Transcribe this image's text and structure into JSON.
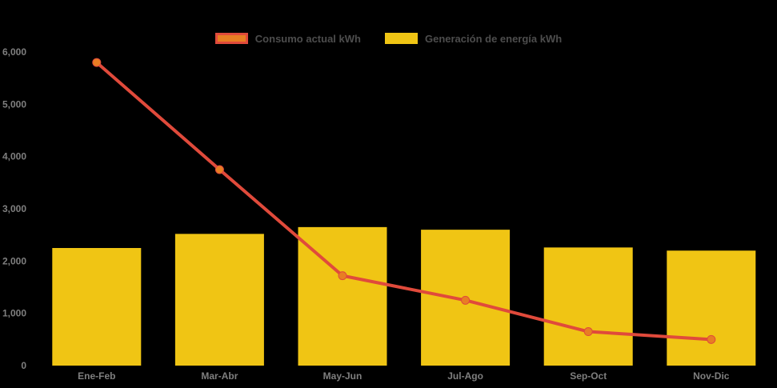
{
  "colors": {
    "background": "#000000",
    "axis_text": "#7F7F7F",
    "legend_text": "#4D4D4D"
  },
  "chart_data": {
    "type": "bar",
    "subtype": "combo-bar-line",
    "title": "",
    "xlabel": "",
    "ylabel": "",
    "grid": false,
    "legend_position": "top",
    "categories": [
      "Ene-Feb",
      "Mar-Abr",
      "May-Jun",
      "Jul-Ago",
      "Sep-Oct",
      "Nov-Dic"
    ],
    "series": [
      {
        "name": "Consumo actual kWh",
        "type": "line",
        "color": "#E04A3B",
        "marker_color": "#E87E23",
        "values": [
          5800,
          3750,
          1720,
          1250,
          650,
          500
        ]
      },
      {
        "name": "Generación de energía kWh",
        "type": "bar",
        "color": "#F0C514",
        "values": [
          2250,
          2520,
          2650,
          2600,
          2260,
          2200
        ]
      }
    ],
    "ylim": [
      0,
      6000
    ],
    "ytick_step": 1000,
    "ytick_labels": [
      "0",
      "1,000",
      "2,000",
      "3,000",
      "4,000",
      "5,000",
      "6,000"
    ]
  }
}
